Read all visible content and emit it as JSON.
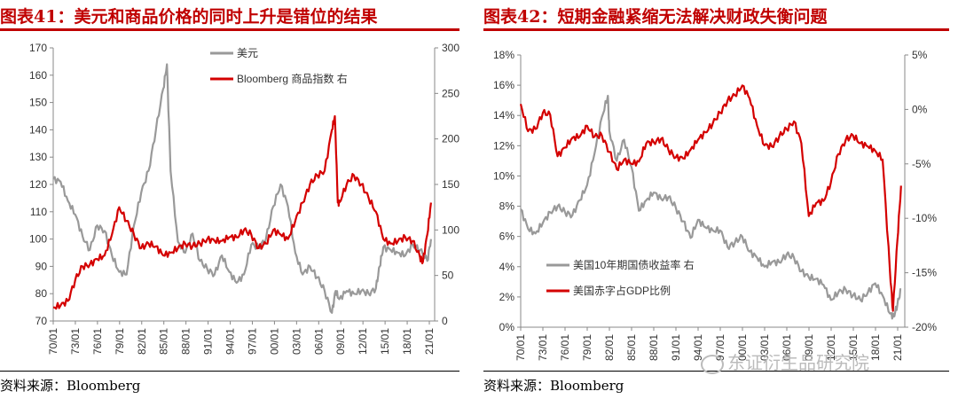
{
  "left": {
    "title": "图表41：美元和商品价格的同时上升是错位的结果",
    "source": "资料来源：Bloomberg"
  },
  "right": {
    "title": "图表42：短期金融紧缩无法解决财政失衡问题",
    "source": "资料来源：Bloomberg"
  },
  "watermark": "东证衍生品研究院",
  "colors": {
    "gray": "#999999",
    "red": "#d40000",
    "title_red": "#c00000"
  },
  "chart_data": [
    {
      "type": "line",
      "title": "",
      "x_ticks": [
        "70/01",
        "73/01",
        "76/01",
        "79/01",
        "82/01",
        "85/01",
        "88/01",
        "91/01",
        "94/01",
        "97/01",
        "00/01",
        "03/01",
        "06/01",
        "09/01",
        "12/01",
        "15/01",
        "18/01",
        "21/01"
      ],
      "xlim": [
        1970,
        2022
      ],
      "y_left": {
        "lim": [
          70,
          170
        ],
        "ticks": [
          "70",
          "80",
          "90",
          "100",
          "110",
          "120",
          "130",
          "140",
          "150",
          "160",
          "170"
        ]
      },
      "y_right": {
        "lim": [
          0,
          300
        ],
        "ticks": [
          "0",
          "50",
          "100",
          "150",
          "200",
          "250",
          "300"
        ]
      },
      "legend_position": "top-center",
      "series": [
        {
          "name": "美元",
          "axis": "left",
          "color": "#999999",
          "x": [
            1970,
            1971,
            1972,
            1973,
            1974,
            1975,
            1976,
            1977,
            1978,
            1979,
            1980,
            1981,
            1982,
            1983,
            1984,
            1985,
            1985.5,
            1986,
            1987,
            1988,
            1989,
            1990,
            1991,
            1992,
            1993,
            1994,
            1995,
            1996,
            1997,
            1998,
            1999,
            2000,
            2001,
            2002,
            2003,
            2004,
            2005,
            2006,
            2007,
            2008,
            2008.5,
            2009,
            2010,
            2011,
            2012,
            2013,
            2014,
            2014.5,
            2015,
            2016,
            2017,
            2018,
            2019,
            2020,
            2021,
            2021.5
          ],
          "y": [
            122,
            121,
            114,
            109,
            101,
            96,
            105,
            103,
            94,
            88,
            87,
            105,
            117,
            125,
            140,
            155,
            164,
            125,
            99,
            95,
            102,
            92,
            89,
            87,
            94,
            88,
            84,
            87,
            98,
            97,
            100,
            112,
            120,
            112,
            95,
            87,
            90,
            86,
            81,
            73,
            81,
            78,
            81,
            80,
            81,
            80,
            82,
            90,
            97,
            96,
            95,
            94,
            98,
            96,
            92,
            100
          ]
        },
        {
          "name": "Bloomberg 商品指数 右",
          "axis": "right",
          "color": "#d40000",
          "x": [
            1970,
            1971,
            1972,
            1973,
            1974,
            1975,
            1976,
            1977,
            1978,
            1979,
            1980,
            1981,
            1982,
            1983,
            1984,
            1985,
            1986,
            1987,
            1988,
            1989,
            1990,
            1991,
            1992,
            1993,
            1994,
            1995,
            1996,
            1997,
            1998,
            1999,
            2000,
            2001,
            2002,
            2003,
            2004,
            2005,
            2006,
            2007,
            2008,
            2008.4,
            2008.8,
            2009,
            2010,
            2011,
            2012,
            2013,
            2014,
            2015,
            2016,
            2017,
            2018,
            2019,
            2020,
            2020.4,
            2021,
            2021.5
          ],
          "y": [
            15,
            17,
            22,
            45,
            60,
            62,
            68,
            72,
            95,
            125,
            110,
            95,
            80,
            85,
            82,
            72,
            75,
            80,
            85,
            82,
            85,
            90,
            88,
            88,
            92,
            92,
            100,
            95,
            80,
            85,
            100,
            95,
            90,
            110,
            130,
            150,
            160,
            165,
            210,
            225,
            130,
            130,
            150,
            160,
            150,
            135,
            120,
            90,
            85,
            88,
            92,
            88,
            70,
            65,
            95,
            130
          ]
        }
      ]
    },
    {
      "type": "line",
      "title": "",
      "x_ticks": [
        "70/01",
        "73/01",
        "76/01",
        "79/01",
        "82/01",
        "85/01",
        "88/01",
        "91/01",
        "94/01",
        "97/01",
        "00/01",
        "03/01",
        "06/01",
        "09/01",
        "12/01",
        "15/01",
        "18/01",
        "21/01"
      ],
      "xlim": [
        1970,
        2022
      ],
      "y_left": {
        "lim": [
          0,
          18
        ],
        "ticks": [
          "0%",
          "2%",
          "4%",
          "6%",
          "8%",
          "10%",
          "12%",
          "14%",
          "16%",
          "18%"
        ]
      },
      "y_right": {
        "lim": [
          -20,
          5
        ],
        "ticks": [
          "-20%",
          "-15%",
          "-10%",
          "-5%",
          "0%",
          "5%"
        ]
      },
      "legend_position": "bottom-left",
      "series": [
        {
          "name": "美国10年期国债收益率 右",
          "axis": "left",
          "color": "#999999",
          "x": [
            1970,
            1971,
            1972,
            1973,
            1974,
            1975,
            1976,
            1977,
            1978,
            1979,
            1980,
            1981,
            1981.8,
            1982,
            1983,
            1984,
            1985,
            1986,
            1987,
            1988,
            1989,
            1990,
            1991,
            1992,
            1993,
            1994,
            1995,
            1996,
            1997,
            1998,
            1999,
            2000,
            2001,
            2002,
            2003,
            2004,
            2005,
            2006,
            2007,
            2008,
            2009,
            2010,
            2011,
            2012,
            2013,
            2014,
            2015,
            2016,
            2017,
            2018,
            2019,
            2020,
            2020.5,
            2021,
            2021.5
          ],
          "y": [
            7.8,
            6.5,
            6.2,
            6.9,
            7.6,
            8.0,
            7.6,
            7.4,
            8.4,
            9.4,
            11.5,
            13.9,
            15.3,
            13.0,
            11.0,
            12.4,
            10.6,
            7.7,
            8.4,
            8.9,
            8.5,
            8.6,
            7.9,
            7.0,
            5.9,
            7.1,
            6.6,
            6.4,
            6.4,
            5.3,
            5.6,
            6.0,
            5.0,
            4.6,
            4.0,
            4.3,
            4.3,
            4.8,
            4.6,
            3.7,
            3.3,
            3.2,
            2.8,
            1.8,
            2.3,
            2.5,
            2.1,
            1.8,
            2.3,
            2.9,
            2.1,
            0.9,
            0.7,
            1.5,
            2.5
          ]
        },
        {
          "name": "美国赤字占GDP比例",
          "axis": "right",
          "color": "#d40000",
          "x": [
            1970,
            1971,
            1972,
            1973,
            1974,
            1975,
            1976,
            1977,
            1978,
            1979,
            1980,
            1981,
            1982,
            1983,
            1984,
            1985,
            1986,
            1987,
            1988,
            1989,
            1990,
            1991,
            1992,
            1993,
            1994,
            1995,
            1996,
            1997,
            1998,
            1999,
            2000,
            2001,
            2002,
            2003,
            2004,
            2005,
            2006,
            2007,
            2008,
            2009,
            2010,
            2011,
            2012,
            2013,
            2014,
            2015,
            2016,
            2017,
            2018,
            2019,
            2020,
            2020.4,
            2021,
            2021.5
          ],
          "y": [
            0.5,
            -2.0,
            -1.8,
            -0.3,
            -0.5,
            -4.3,
            -3.5,
            -2.6,
            -2.5,
            -1.5,
            -2.5,
            -2.4,
            -3.9,
            -5.5,
            -4.6,
            -5.0,
            -4.8,
            -3.1,
            -3.0,
            -2.7,
            -3.7,
            -4.4,
            -4.5,
            -3.7,
            -2.8,
            -2.1,
            -1.3,
            -0.3,
            0.8,
            1.3,
            2.2,
            1.0,
            -1.5,
            -3.3,
            -3.4,
            -2.5,
            -1.8,
            -1.1,
            -3.1,
            -9.8,
            -8.6,
            -8.4,
            -6.7,
            -4.1,
            -2.8,
            -2.4,
            -3.1,
            -3.4,
            -3.8,
            -4.6,
            -14.9,
            -18.5,
            -12.0,
            -7.0
          ]
        }
      ]
    }
  ]
}
